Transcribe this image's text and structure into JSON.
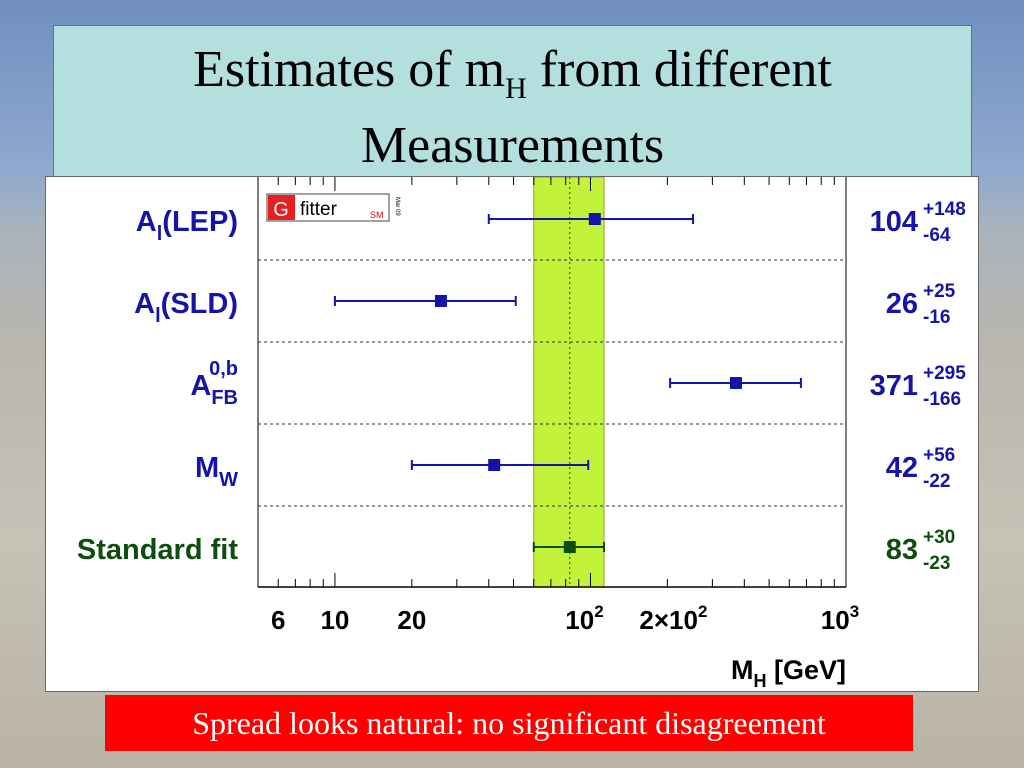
{
  "title": {
    "line1_prefix": "Estimates of m",
    "line1_sub": "H",
    "line1_suffix": " from different",
    "line2": "Measurements"
  },
  "caption": "Spread looks natural: no significant disagreement",
  "logo": {
    "letter": "G",
    "word": "fitter",
    "tag": "SM",
    "date": "Mar 09"
  },
  "colors": {
    "blue": "#1414aa",
    "green": "#0d4d0d",
    "band": "#c2f23a",
    "caption_bg": "#ff0000"
  },
  "chart_data": {
    "type": "scatter",
    "xscale": "log",
    "xlim": [
      5,
      1000
    ],
    "xlabel": "M_H [GeV]",
    "xlabel_main": "M",
    "xlabel_sub": "H",
    "xlabel_unit": " [GeV]",
    "xticklabels": [
      "6",
      "10",
      "20",
      "10^2",
      "2×10^2",
      "10^3"
    ],
    "band": {
      "low": 60,
      "high": 113,
      "center": 83
    },
    "grid": "dashed row separators",
    "points": [
      {
        "label_main": "A",
        "label_sub": "l",
        "label_tail": "(LEP)",
        "label_sup": "",
        "value": 104,
        "plus": "+148",
        "minus": "-64",
        "low": 40,
        "high": 252,
        "color": "blue"
      },
      {
        "label_main": "A",
        "label_sub": "l",
        "label_tail": "(SLD)",
        "label_sup": "",
        "value": 26,
        "plus": "+25",
        "minus": "-16",
        "low": 10,
        "high": 51,
        "color": "blue"
      },
      {
        "label_main": "A",
        "label_sub": "FB",
        "label_tail": "",
        "label_sup": "0,b",
        "value": 371,
        "plus": "+295",
        "minus": "-166",
        "low": 205,
        "high": 666,
        "color": "blue"
      },
      {
        "label_main": "M",
        "label_sub": "W",
        "label_tail": "",
        "label_sup": "",
        "value": 42,
        "plus": "+56",
        "minus": "-22",
        "low": 20,
        "high": 98,
        "color": "blue"
      },
      {
        "label_main": "Standard fit",
        "label_sub": "",
        "label_tail": "",
        "label_sup": "",
        "value": 83,
        "plus": "+30",
        "minus": "-23",
        "low": 60,
        "high": 113,
        "color": "green"
      }
    ]
  }
}
